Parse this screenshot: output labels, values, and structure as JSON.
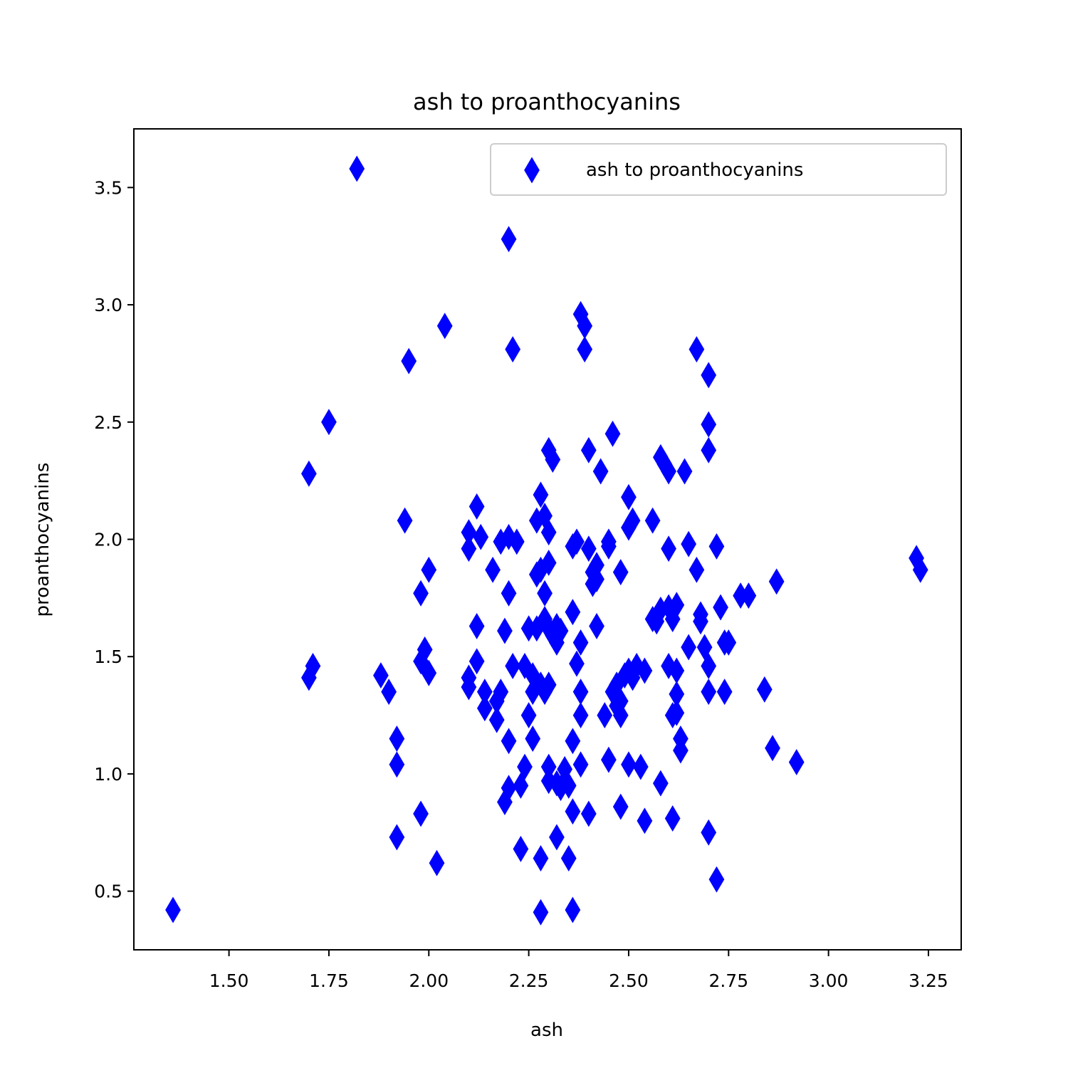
{
  "chart_data": {
    "type": "scatter",
    "title": "ash to proanthocyanins",
    "xlabel": "ash",
    "ylabel": "proanthocyanins",
    "xlim": [
      1.262,
      3.332
    ],
    "ylim": [
      0.25,
      3.75
    ],
    "xticks": [
      "1.50",
      "1.75",
      "2.00",
      "2.25",
      "2.50",
      "2.75",
      "3.00",
      "3.25"
    ],
    "yticks": [
      "0.5",
      "1.0",
      "1.5",
      "2.0",
      "2.5",
      "3.0",
      "3.5"
    ],
    "grid": false,
    "legend": {
      "position": "top-right",
      "entries": [
        "ash to proanthocyanins"
      ]
    },
    "series": [
      {
        "name": "ash to proanthocyanins",
        "marker": "thin-diamond",
        "color": "#0000ff",
        "points": [
          [
            1.36,
            0.42
          ],
          [
            1.7,
            2.28
          ],
          [
            1.7,
            1.41
          ],
          [
            1.71,
            1.46
          ],
          [
            1.75,
            2.5
          ],
          [
            1.82,
            3.58
          ],
          [
            1.88,
            1.42
          ],
          [
            1.9,
            1.35
          ],
          [
            1.92,
            1.15
          ],
          [
            1.92,
            1.04
          ],
          [
            1.92,
            0.73
          ],
          [
            1.94,
            2.08
          ],
          [
            1.95,
            2.76
          ],
          [
            1.98,
            1.77
          ],
          [
            1.98,
            1.48
          ],
          [
            1.98,
            0.83
          ],
          [
            1.99,
            1.53
          ],
          [
            2.0,
            1.87
          ],
          [
            2.0,
            1.43
          ],
          [
            2.02,
            0.62
          ],
          [
            2.04,
            2.91
          ],
          [
            2.1,
            2.03
          ],
          [
            2.1,
            1.96
          ],
          [
            2.1,
            1.41
          ],
          [
            2.1,
            1.37
          ],
          [
            2.12,
            2.14
          ],
          [
            2.12,
            1.63
          ],
          [
            2.12,
            1.48
          ],
          [
            2.13,
            2.01
          ],
          [
            2.14,
            1.35
          ],
          [
            2.14,
            1.28
          ],
          [
            2.16,
            1.87
          ],
          [
            2.17,
            1.31
          ],
          [
            2.17,
            1.23
          ],
          [
            2.18,
            1.35
          ],
          [
            2.18,
            1.99
          ],
          [
            2.19,
            1.61
          ],
          [
            2.19,
            0.88
          ],
          [
            2.2,
            3.28
          ],
          [
            2.2,
            2.01
          ],
          [
            2.2,
            1.77
          ],
          [
            2.2,
            1.14
          ],
          [
            2.2,
            0.94
          ],
          [
            2.21,
            2.81
          ],
          [
            2.21,
            1.46
          ],
          [
            2.22,
            1.99
          ],
          [
            2.23,
            0.68
          ],
          [
            2.23,
            0.95
          ],
          [
            2.24,
            1.46
          ],
          [
            2.24,
            1.03
          ],
          [
            2.25,
            1.62
          ],
          [
            2.25,
            1.25
          ],
          [
            2.26,
            1.42
          ],
          [
            2.26,
            1.15
          ],
          [
            2.26,
            1.35
          ],
          [
            2.27,
            2.08
          ],
          [
            2.27,
            1.85
          ],
          [
            2.27,
            1.62
          ],
          [
            2.28,
            2.19
          ],
          [
            2.28,
            1.38
          ],
          [
            2.28,
            1.87
          ],
          [
            2.28,
            0.64
          ],
          [
            2.28,
            0.41
          ],
          [
            2.29,
            2.1
          ],
          [
            2.29,
            1.77
          ],
          [
            2.29,
            1.66
          ],
          [
            2.29,
            1.35
          ],
          [
            2.3,
            2.38
          ],
          [
            2.3,
            2.03
          ],
          [
            2.3,
            1.9
          ],
          [
            2.3,
            1.62
          ],
          [
            2.3,
            1.38
          ],
          [
            2.3,
            1.03
          ],
          [
            2.3,
            0.97
          ],
          [
            2.31,
            2.34
          ],
          [
            2.31,
            1.59
          ],
          [
            2.32,
            1.63
          ],
          [
            2.32,
            1.56
          ],
          [
            2.32,
            0.96
          ],
          [
            2.32,
            0.73
          ],
          [
            2.33,
            1.61
          ],
          [
            2.33,
            0.94
          ],
          [
            2.34,
            1.02
          ],
          [
            2.35,
            0.64
          ],
          [
            2.35,
            0.95
          ],
          [
            2.36,
            1.97
          ],
          [
            2.36,
            1.69
          ],
          [
            2.36,
            1.14
          ],
          [
            2.36,
            0.84
          ],
          [
            2.36,
            0.42
          ],
          [
            2.37,
            1.99
          ],
          [
            2.37,
            1.47
          ],
          [
            2.38,
            2.96
          ],
          [
            2.38,
            1.56
          ],
          [
            2.38,
            1.35
          ],
          [
            2.38,
            1.25
          ],
          [
            2.38,
            1.04
          ],
          [
            2.39,
            2.91
          ],
          [
            2.39,
            2.81
          ],
          [
            2.4,
            2.38
          ],
          [
            2.4,
            1.96
          ],
          [
            2.4,
            0.83
          ],
          [
            2.41,
            1.86
          ],
          [
            2.41,
            1.81
          ],
          [
            2.42,
            1.89
          ],
          [
            2.42,
            1.83
          ],
          [
            2.42,
            1.63
          ],
          [
            2.43,
            2.29
          ],
          [
            2.44,
            1.25
          ],
          [
            2.45,
            1.99
          ],
          [
            2.45,
            1.97
          ],
          [
            2.45,
            1.06
          ],
          [
            2.46,
            2.45
          ],
          [
            2.46,
            1.35
          ],
          [
            2.47,
            1.29
          ],
          [
            2.47,
            1.38
          ],
          [
            2.48,
            1.86
          ],
          [
            2.48,
            1.31
          ],
          [
            2.48,
            1.25
          ],
          [
            2.48,
            0.86
          ],
          [
            2.49,
            1.42
          ],
          [
            2.5,
            2.18
          ],
          [
            2.5,
            2.05
          ],
          [
            2.5,
            1.44
          ],
          [
            2.5,
            1.04
          ],
          [
            2.51,
            2.08
          ],
          [
            2.51,
            1.41
          ],
          [
            2.52,
            1.46
          ],
          [
            2.53,
            1.03
          ],
          [
            2.54,
            1.44
          ],
          [
            2.54,
            0.8
          ],
          [
            2.56,
            2.08
          ],
          [
            2.56,
            1.66
          ],
          [
            2.57,
            1.65
          ],
          [
            2.58,
            2.35
          ],
          [
            2.58,
            1.7
          ],
          [
            2.58,
            0.96
          ],
          [
            2.59,
            2.32
          ],
          [
            2.6,
            2.29
          ],
          [
            2.6,
            1.96
          ],
          [
            2.6,
            1.71
          ],
          [
            2.6,
            1.46
          ],
          [
            2.61,
            1.66
          ],
          [
            2.61,
            1.25
          ],
          [
            2.61,
            0.81
          ],
          [
            2.62,
            1.72
          ],
          [
            2.62,
            1.44
          ],
          [
            2.62,
            1.34
          ],
          [
            2.62,
            1.26
          ],
          [
            2.63,
            1.15
          ],
          [
            2.63,
            1.1
          ],
          [
            2.64,
            2.29
          ],
          [
            2.65,
            1.98
          ],
          [
            2.65,
            1.54
          ],
          [
            2.67,
            2.81
          ],
          [
            2.67,
            1.87
          ],
          [
            2.68,
            1.68
          ],
          [
            2.68,
            1.65
          ],
          [
            2.69,
            1.54
          ],
          [
            2.7,
            2.7
          ],
          [
            2.7,
            2.49
          ],
          [
            2.7,
            2.38
          ],
          [
            2.7,
            1.46
          ],
          [
            2.7,
            1.35
          ],
          [
            2.7,
            0.75
          ],
          [
            2.72,
            1.97
          ],
          [
            2.72,
            0.55
          ],
          [
            2.73,
            1.71
          ],
          [
            2.74,
            1.56
          ],
          [
            2.74,
            1.35
          ],
          [
            2.75,
            1.56
          ],
          [
            2.78,
            1.76
          ],
          [
            2.8,
            1.76
          ],
          [
            2.84,
            1.36
          ],
          [
            2.86,
            1.11
          ],
          [
            2.87,
            1.82
          ],
          [
            2.92,
            1.05
          ],
          [
            3.22,
            1.92
          ],
          [
            3.23,
            1.87
          ]
        ]
      }
    ]
  }
}
